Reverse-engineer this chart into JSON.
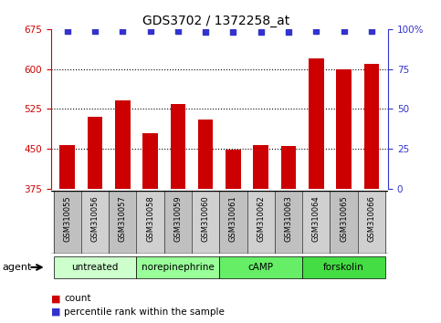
{
  "title": "GDS3702 / 1372258_at",
  "samples": [
    "GSM310055",
    "GSM310056",
    "GSM310057",
    "GSM310058",
    "GSM310059",
    "GSM310060",
    "GSM310061",
    "GSM310062",
    "GSM310063",
    "GSM310064",
    "GSM310065",
    "GSM310066"
  ],
  "bar_values": [
    458,
    510,
    542,
    480,
    535,
    505,
    448,
    458,
    455,
    620,
    600,
    610
  ],
  "percentile_values": [
    99,
    99,
    99,
    99,
    99,
    98,
    98,
    98,
    98,
    99,
    99,
    99
  ],
  "bar_color": "#cc0000",
  "dot_color": "#3333cc",
  "ylim_left": [
    375,
    675
  ],
  "yticks_left": [
    375,
    450,
    525,
    600,
    675
  ],
  "ylim_right": [
    0,
    100
  ],
  "yticks_right": [
    0,
    25,
    50,
    75,
    100
  ],
  "grid_values": [
    450,
    525,
    600
  ],
  "agent_groups": [
    {
      "label": "untreated",
      "start": 0,
      "end": 3
    },
    {
      "label": "norepinephrine",
      "start": 3,
      "end": 6
    },
    {
      "label": "cAMP",
      "start": 6,
      "end": 9
    },
    {
      "label": "forskolin",
      "start": 9,
      "end": 12
    }
  ],
  "group_colors": [
    "#ccffcc",
    "#99ff99",
    "#66ee66",
    "#44dd44"
  ],
  "agent_label": "agent",
  "legend_count_label": "count",
  "legend_pct_label": "percentile rank within the sample",
  "bg_color": "#ffffff",
  "sample_bg_color": "#cccccc",
  "bar_bottom": 375
}
